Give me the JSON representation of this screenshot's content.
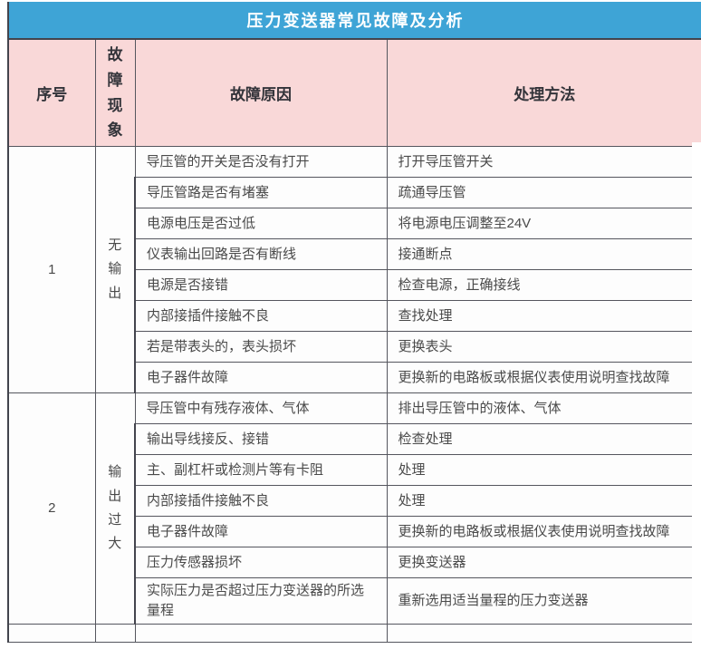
{
  "title": "压力变送器常见故障及分析",
  "columns": [
    "序号",
    "故障现象",
    "故障原因",
    "处理方法"
  ],
  "groups": [
    {
      "no": "1",
      "phenomenon": "无输出",
      "rows": [
        {
          "cause": "导压管的开关是否没有打开",
          "solution": "打开导压管开关"
        },
        {
          "cause": "导压管路是否有堵塞",
          "solution": "疏通导压管"
        },
        {
          "cause": "电源电压是否过低",
          "solution": "将电源电压调整至24V"
        },
        {
          "cause": "仪表输出回路是否有断线",
          "solution": "接通断点"
        },
        {
          "cause": "电源是否接错",
          "solution": "检查电源，正确接线"
        },
        {
          "cause": "内部接插件接触不良",
          "solution": "查找处理"
        },
        {
          "cause": "若是带表头的，表头损坏",
          "solution": "更换表头"
        },
        {
          "cause": "电子器件故障",
          "solution": "更换新的电路板或根据仪表使用说明查找故障"
        }
      ]
    },
    {
      "no": "2",
      "phenomenon": "输出过大",
      "rows": [
        {
          "cause": "导压管中有残存液体、气体",
          "solution": "排出导压管中的液体、气体"
        },
        {
          "cause": "输出导线接反、接错",
          "solution": "检查处理"
        },
        {
          "cause": "主、副杠杆或检测片等有卡阻",
          "solution": "处理"
        },
        {
          "cause": "内部接插件接触不良",
          "solution": "处理"
        },
        {
          "cause": "电子器件故障",
          "solution": "更换新的电路板或根据仪表使用说明查找故障"
        },
        {
          "cause": "压力传感器损坏",
          "solution": "更换变送器"
        },
        {
          "cause": "实际压力是否超过压力变送器的所选量程",
          "solution": "重新选用适当量程的压力变送器"
        }
      ]
    }
  ],
  "colors": {
    "title_bg": "#3ea4d6",
    "title_text": "#ffffff",
    "header_bg": "#f9d8d8",
    "header_text": "#33343a",
    "body_text": "#4a4a4a",
    "border": "#55565e",
    "border_dark": "#43444d"
  }
}
